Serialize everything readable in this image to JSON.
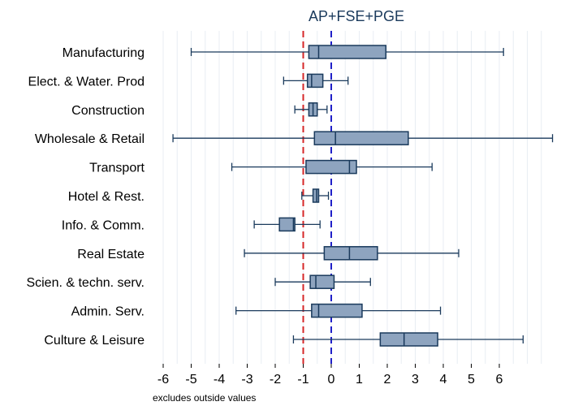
{
  "chart_data": {
    "type": "boxplot",
    "title": "AP+FSE+PGE",
    "note": "excludes outside values",
    "xlim": [
      -6,
      6
    ],
    "xticks": [
      -6,
      -5,
      -4,
      -3,
      -2,
      -1,
      0,
      1,
      2,
      3,
      4,
      5,
      6
    ],
    "reference_lines": [
      {
        "x": -1,
        "color": "#d62728",
        "style": "dashed"
      },
      {
        "x": 0,
        "color": "#1f1fc8",
        "style": "dashed"
      }
    ],
    "grid": "vertical",
    "colors": {
      "box_fill": "#8ea4bf",
      "box_stroke": "#1a3a5c",
      "grid": "#e8edf3"
    },
    "categories": [
      "Manufacturing",
      "Elect. & Water. Prod",
      "Construction",
      "Wholesale & Retail",
      "Transport",
      "Hotel & Rest.",
      "Info. & Comm.",
      "Real Estate",
      "Scien. & techn. serv.",
      "Admin. Serv.",
      "Culture & Leisure"
    ],
    "boxes": [
      {
        "whisker_low": -5.0,
        "q1": -0.8,
        "median": -0.45,
        "q3": 1.95,
        "whisker_high": 6.15
      },
      {
        "whisker_low": -1.7,
        "q1": -0.85,
        "median": -0.7,
        "q3": -0.3,
        "whisker_high": 0.6
      },
      {
        "whisker_low": -1.3,
        "q1": -0.8,
        "median": -0.65,
        "q3": -0.5,
        "whisker_high": -0.15
      },
      {
        "whisker_low": -5.65,
        "q1": -0.6,
        "median": 0.15,
        "q3": 2.75,
        "whisker_high": 7.9
      },
      {
        "whisker_low": -3.55,
        "q1": -0.9,
        "median": 0.65,
        "q3": 0.9,
        "whisker_high": 3.6
      },
      {
        "whisker_low": -1.05,
        "q1": -0.65,
        "median": -0.52,
        "q3": -0.45,
        "whisker_high": -0.1
      },
      {
        "whisker_low": -2.75,
        "q1": -1.85,
        "median": -1.35,
        "q3": -1.3,
        "whisker_high": -0.4
      },
      {
        "whisker_low": -3.1,
        "q1": -0.25,
        "median": 0.65,
        "q3": 1.65,
        "whisker_high": 4.55
      },
      {
        "whisker_low": -2.0,
        "q1": -0.75,
        "median": -0.55,
        "q3": 0.1,
        "whisker_high": 1.4
      },
      {
        "whisker_low": -3.4,
        "q1": -0.7,
        "median": -0.45,
        "q3": 1.1,
        "whisker_high": 3.9
      },
      {
        "whisker_low": -1.35,
        "q1": 1.75,
        "median": 2.6,
        "q3": 3.8,
        "whisker_high": 6.85
      }
    ]
  }
}
